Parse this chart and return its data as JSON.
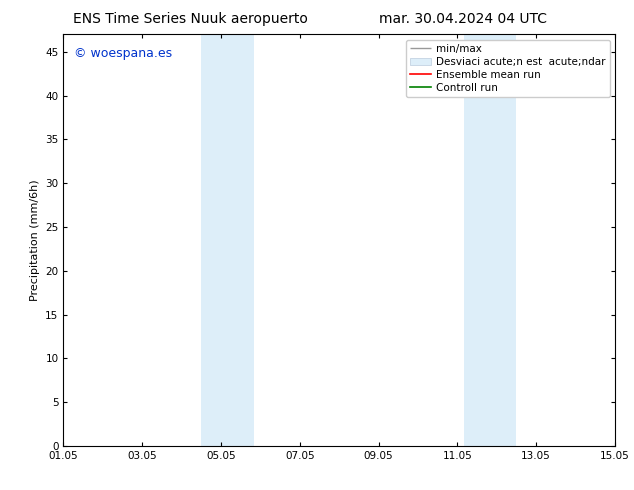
{
  "title_left": "ENS Time Series Nuuk aeropuerto",
  "title_right": "mar. 30.04.2024 04 UTC",
  "ylabel": "Precipitation (mm/6h)",
  "xlabel": "",
  "ylim": [
    0,
    47
  ],
  "yticks": [
    0,
    5,
    10,
    15,
    20,
    25,
    30,
    35,
    40,
    45
  ],
  "xtick_labels": [
    "01.05",
    "03.05",
    "05.05",
    "07.05",
    "09.05",
    "11.05",
    "13.05",
    "15.05"
  ],
  "xtick_positions": [
    0,
    2,
    4,
    6,
    8,
    10,
    12,
    14
  ],
  "shaded_regions": [
    {
      "xstart": 3.5,
      "xend": 4.17,
      "color": "#ddeef9"
    },
    {
      "xstart": 4.17,
      "xend": 4.83,
      "color": "#ddeef9"
    },
    {
      "xstart": 10.17,
      "xend": 10.83,
      "color": "#ddeef9"
    },
    {
      "xstart": 10.83,
      "xend": 11.5,
      "color": "#ddeef9"
    }
  ],
  "legend_label_minmax": "min/max",
  "legend_label_std": "Desviaci acute;n est  acute;ndar",
  "legend_label_ens": "Ensemble mean run",
  "legend_label_ctrl": "Controll run",
  "watermark_text": "© woespana.es",
  "watermark_color": "#0033cc",
  "background_color": "#ffffff",
  "plot_bg_color": "#ffffff",
  "title_fontsize": 10,
  "axis_label_fontsize": 8,
  "tick_fontsize": 7.5,
  "legend_fontsize": 7.5
}
